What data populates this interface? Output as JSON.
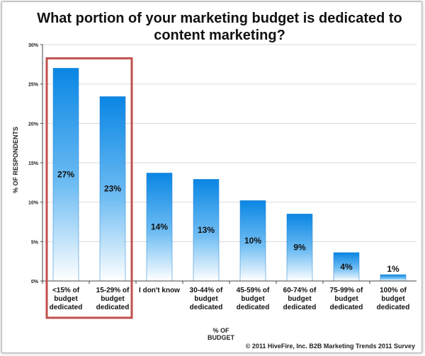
{
  "chart_data": {
    "type": "bar",
    "title": "What portion of your marketing budget is dedicated to content marketing?",
    "xlabel": "% OF BUDGET",
    "ylabel": "% OF RESPONDENTS",
    "categories": [
      "<15% of budget dedicated",
      "15-29%  of budget dedicated",
      "I don't know",
      "30-44% of budget dedicated",
      "45-59% of budget dedicated",
      "60-74% of budget dedicated",
      "75-99% of budget dedicated",
      "100% of budget dedicated"
    ],
    "values": [
      27,
      23.4,
      13.7,
      12.9,
      10.2,
      8.5,
      3.6,
      0.8
    ],
    "data_labels": [
      "27%",
      "23%",
      "14%",
      "13%",
      "10%",
      "9%",
      "4%",
      "1%"
    ],
    "ylim": [
      0,
      30
    ],
    "yticks": [
      0,
      5,
      10,
      15,
      20,
      25,
      30
    ],
    "ytick_labels": [
      "0%",
      "5%",
      "10%",
      "15%",
      "20%",
      "25%",
      "30%"
    ],
    "grid": true,
    "highlighted_categories": [
      0,
      1
    ],
    "colors": {
      "bar_top": "#0a86e4",
      "bar_bottom": "#ffffff",
      "highlight_box": "#c0504d",
      "gridline": "#d9d9d9"
    }
  },
  "source": "© 2011 HiveFire, Inc. B2B Marketing Trends 2011 Survey"
}
